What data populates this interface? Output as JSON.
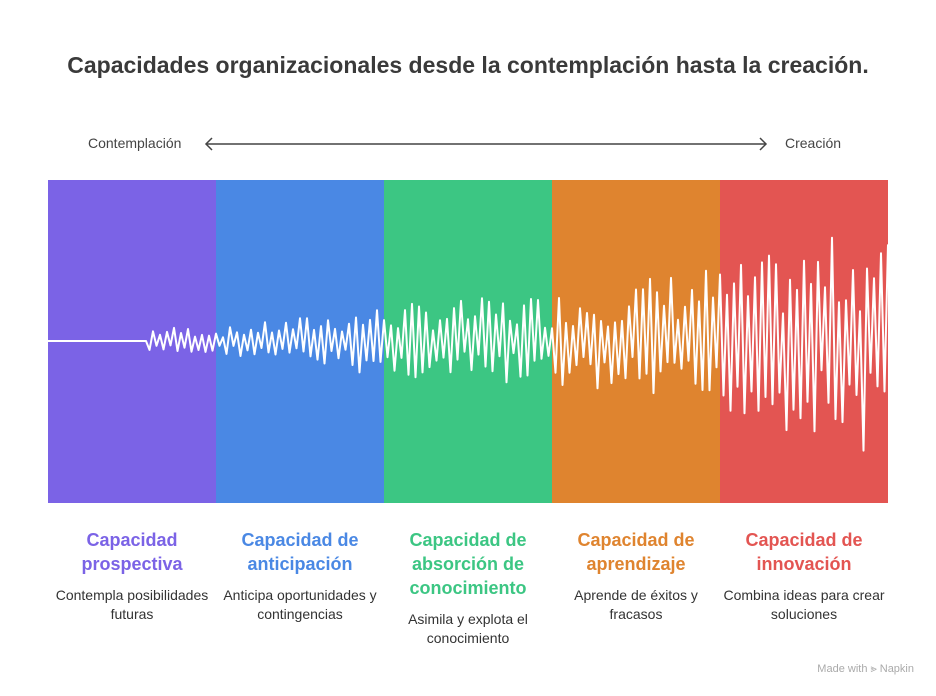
{
  "title": "Capacidades organizacionales desde la contemplación hasta la creación.",
  "axis": {
    "left": "Contemplación",
    "right": "Creación"
  },
  "stages": [
    {
      "title": "Capacidad prospectiva",
      "desc": "Contempla posibilidades futuras",
      "color": "#7B63E6"
    },
    {
      "title": "Capacidad de anticipación",
      "desc": "Anticipa oportunidades y contingencias",
      "color": "#4A88E4"
    },
    {
      "title": "Capacidad de absorción de conocimiento",
      "desc": "Asimila y explota el conocimiento",
      "color": "#3CC683"
    },
    {
      "title": "Capacidad de aprendizaje",
      "desc": "Aprende de éxitos y fracasos",
      "color": "#DF842F"
    },
    {
      "title": "Capacidad de innovación",
      "desc": "Combina ideas para crear soluciones",
      "color": "#E35552"
    }
  ],
  "footer": "Made with ⪢ Napkin"
}
